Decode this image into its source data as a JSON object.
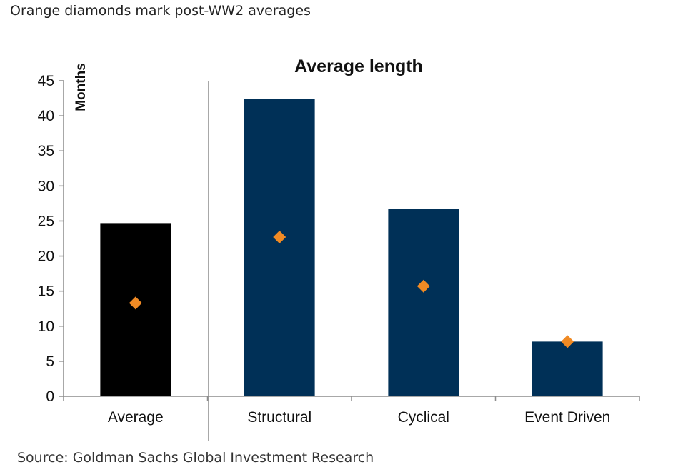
{
  "header": {
    "subtitle": "Orange diamonds mark post-WW2 averages"
  },
  "footer": {
    "source": "Source: Goldman Sachs Global Investment Research"
  },
  "chart_data": {
    "type": "bar",
    "title": "Average length",
    "xlabel": "",
    "ylabel": "Months",
    "ylim": [
      0,
      45
    ],
    "yticks": [
      "0",
      "5",
      "10",
      "15",
      "20",
      "25",
      "30",
      "35",
      "40",
      "45"
    ],
    "categories": [
      "Average",
      "Structural",
      "Cyclical",
      "Event Driven"
    ],
    "series": [
      {
        "values": [
          24.7,
          42.4,
          26.7,
          7.8
        ]
      },
      {
        "values": [
          13.3,
          22.7,
          15.7,
          7.8
        ]
      }
    ],
    "bar_colors": [
      "#000000",
      "#003057",
      "#003057",
      "#003057"
    ],
    "marker_color": "#F08A24",
    "marker_shape": "diamond",
    "grid": false,
    "separator_after_category": 0
  }
}
